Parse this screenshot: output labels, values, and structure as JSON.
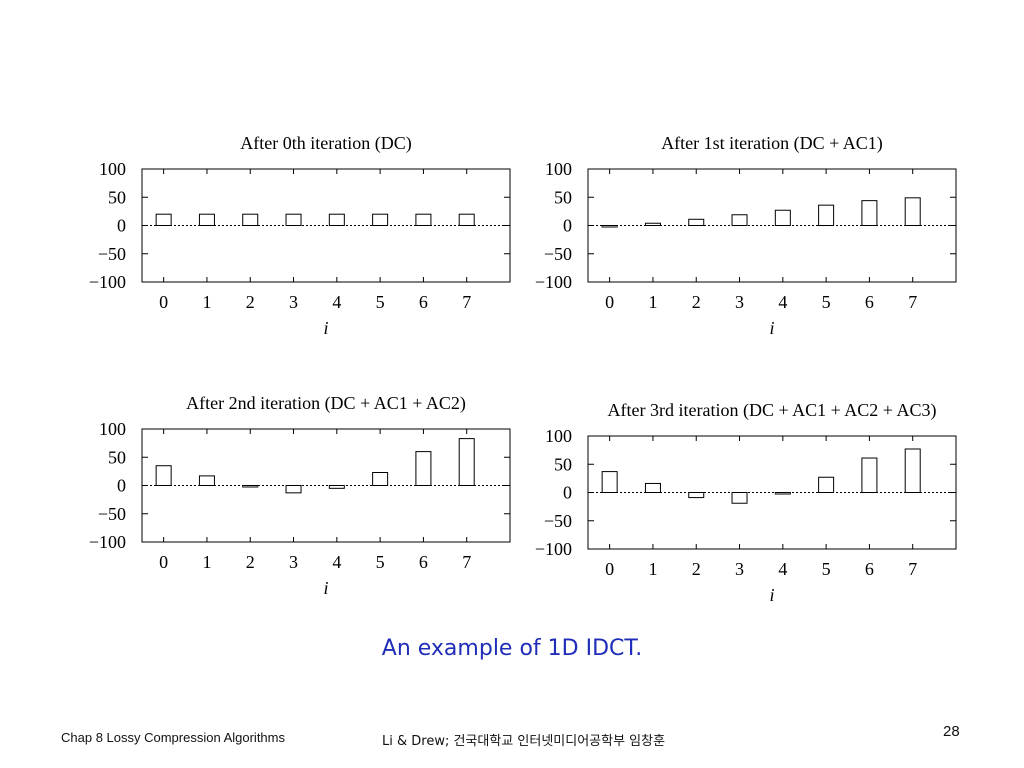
{
  "chart_data": [
    {
      "type": "bar",
      "title": "After 0th iteration (DC)",
      "xlabel": "i",
      "categories": [
        "0",
        "1",
        "2",
        "3",
        "4",
        "5",
        "6",
        "7"
      ],
      "values": [
        20,
        20,
        20,
        20,
        20,
        20,
        20,
        20
      ],
      "ylim": [
        -100,
        100
      ],
      "yticks": [
        "100",
        "50",
        "0",
        "−50",
        "−100"
      ],
      "baseline": "dotted"
    },
    {
      "type": "bar",
      "title": "After 1st iteration (DC + AC1)",
      "xlabel": "i",
      "categories": [
        "0",
        "1",
        "2",
        "3",
        "4",
        "5",
        "6",
        "7"
      ],
      "values": [
        0,
        4,
        11,
        19,
        27,
        36,
        44,
        49
      ],
      "ylim": [
        -100,
        100
      ],
      "yticks": [
        "100",
        "50",
        "0",
        "−50",
        "−100"
      ],
      "baseline": "dotted"
    },
    {
      "type": "bar",
      "title": "After 2nd iteration (DC + AC1 + AC2)",
      "xlabel": "i",
      "categories": [
        "0",
        "1",
        "2",
        "3",
        "4",
        "5",
        "6",
        "7"
      ],
      "values": [
        35,
        17,
        -2,
        -13,
        -5,
        23,
        60,
        83
      ],
      "ylim": [
        -100,
        100
      ],
      "yticks": [
        "100",
        "50",
        "0",
        "−50",
        "−100"
      ],
      "baseline": "dotted"
    },
    {
      "type": "bar",
      "title": "After 3rd iteration (DC + AC1 + AC2 + AC3)",
      "xlabel": "i",
      "categories": [
        "0",
        "1",
        "2",
        "3",
        "4",
        "5",
        "6",
        "7"
      ],
      "values": [
        37,
        16,
        -9,
        -19,
        -2,
        27,
        61,
        77
      ],
      "ylim": [
        -100,
        100
      ],
      "yticks": [
        "100",
        "50",
        "0",
        "−50",
        "−100"
      ],
      "baseline": "dotted"
    }
  ],
  "caption": "An example of 1D IDCT.",
  "footer": {
    "chapter": "Chap 8  Lossy Compression Algorithms",
    "author": "Li & Drew; 건국대학교 인터넷미디어공학부 임창훈",
    "page": "28"
  },
  "colors": {
    "caption": "#1f2db8",
    "axis": "#000000",
    "bar_fill": "#ffffff"
  }
}
